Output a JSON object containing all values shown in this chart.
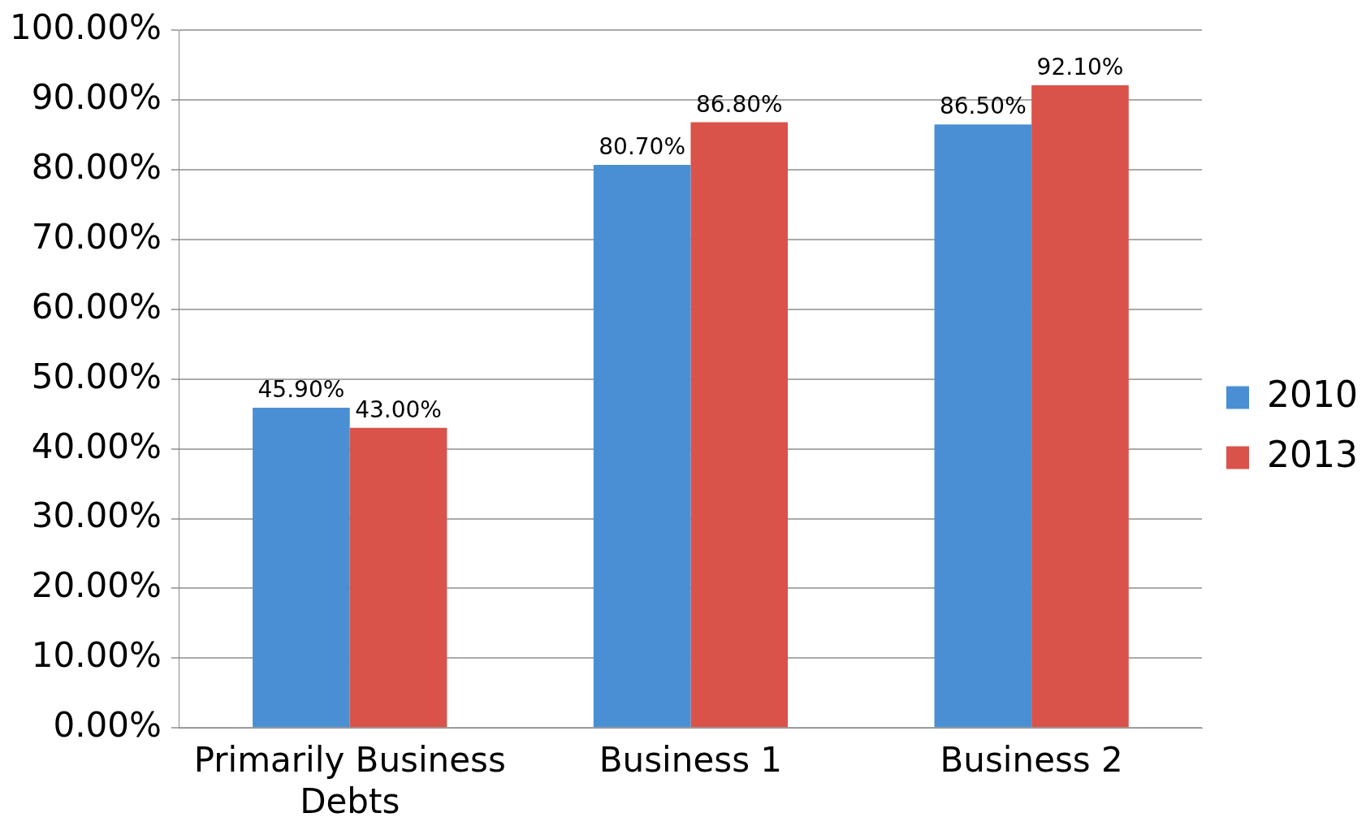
{
  "chart_data": {
    "type": "bar",
    "categories": [
      "Primarily Business Debts",
      "Business 1",
      "Business 2"
    ],
    "series": [
      {
        "name": "2010",
        "color": "#4a8fd4",
        "values": [
          45.9,
          80.7,
          86.5
        ],
        "value_labels": [
          "45.90%",
          "80.70%",
          "86.50%"
        ]
      },
      {
        "name": "2013",
        "color": "#d9534a",
        "values": [
          43.0,
          86.8,
          92.1
        ],
        "value_labels": [
          "43.00%",
          "86.80%",
          "92.10%"
        ]
      }
    ],
    "ylim": [
      0,
      100
    ],
    "yticks": [
      {
        "value": 0,
        "label": "0.00%"
      },
      {
        "value": 10,
        "label": "10.00%"
      },
      {
        "value": 20,
        "label": "20.00%"
      },
      {
        "value": 30,
        "label": "30.00%"
      },
      {
        "value": 40,
        "label": "40.00%"
      },
      {
        "value": 50,
        "label": "50.00%"
      },
      {
        "value": 60,
        "label": "60.00%"
      },
      {
        "value": 70,
        "label": "70.00%"
      },
      {
        "value": 80,
        "label": "80.00%"
      },
      {
        "value": 90,
        "label": "90.00%"
      },
      {
        "value": 100,
        "label": "100.00%"
      }
    ],
    "grid": "y",
    "legend": "right"
  }
}
